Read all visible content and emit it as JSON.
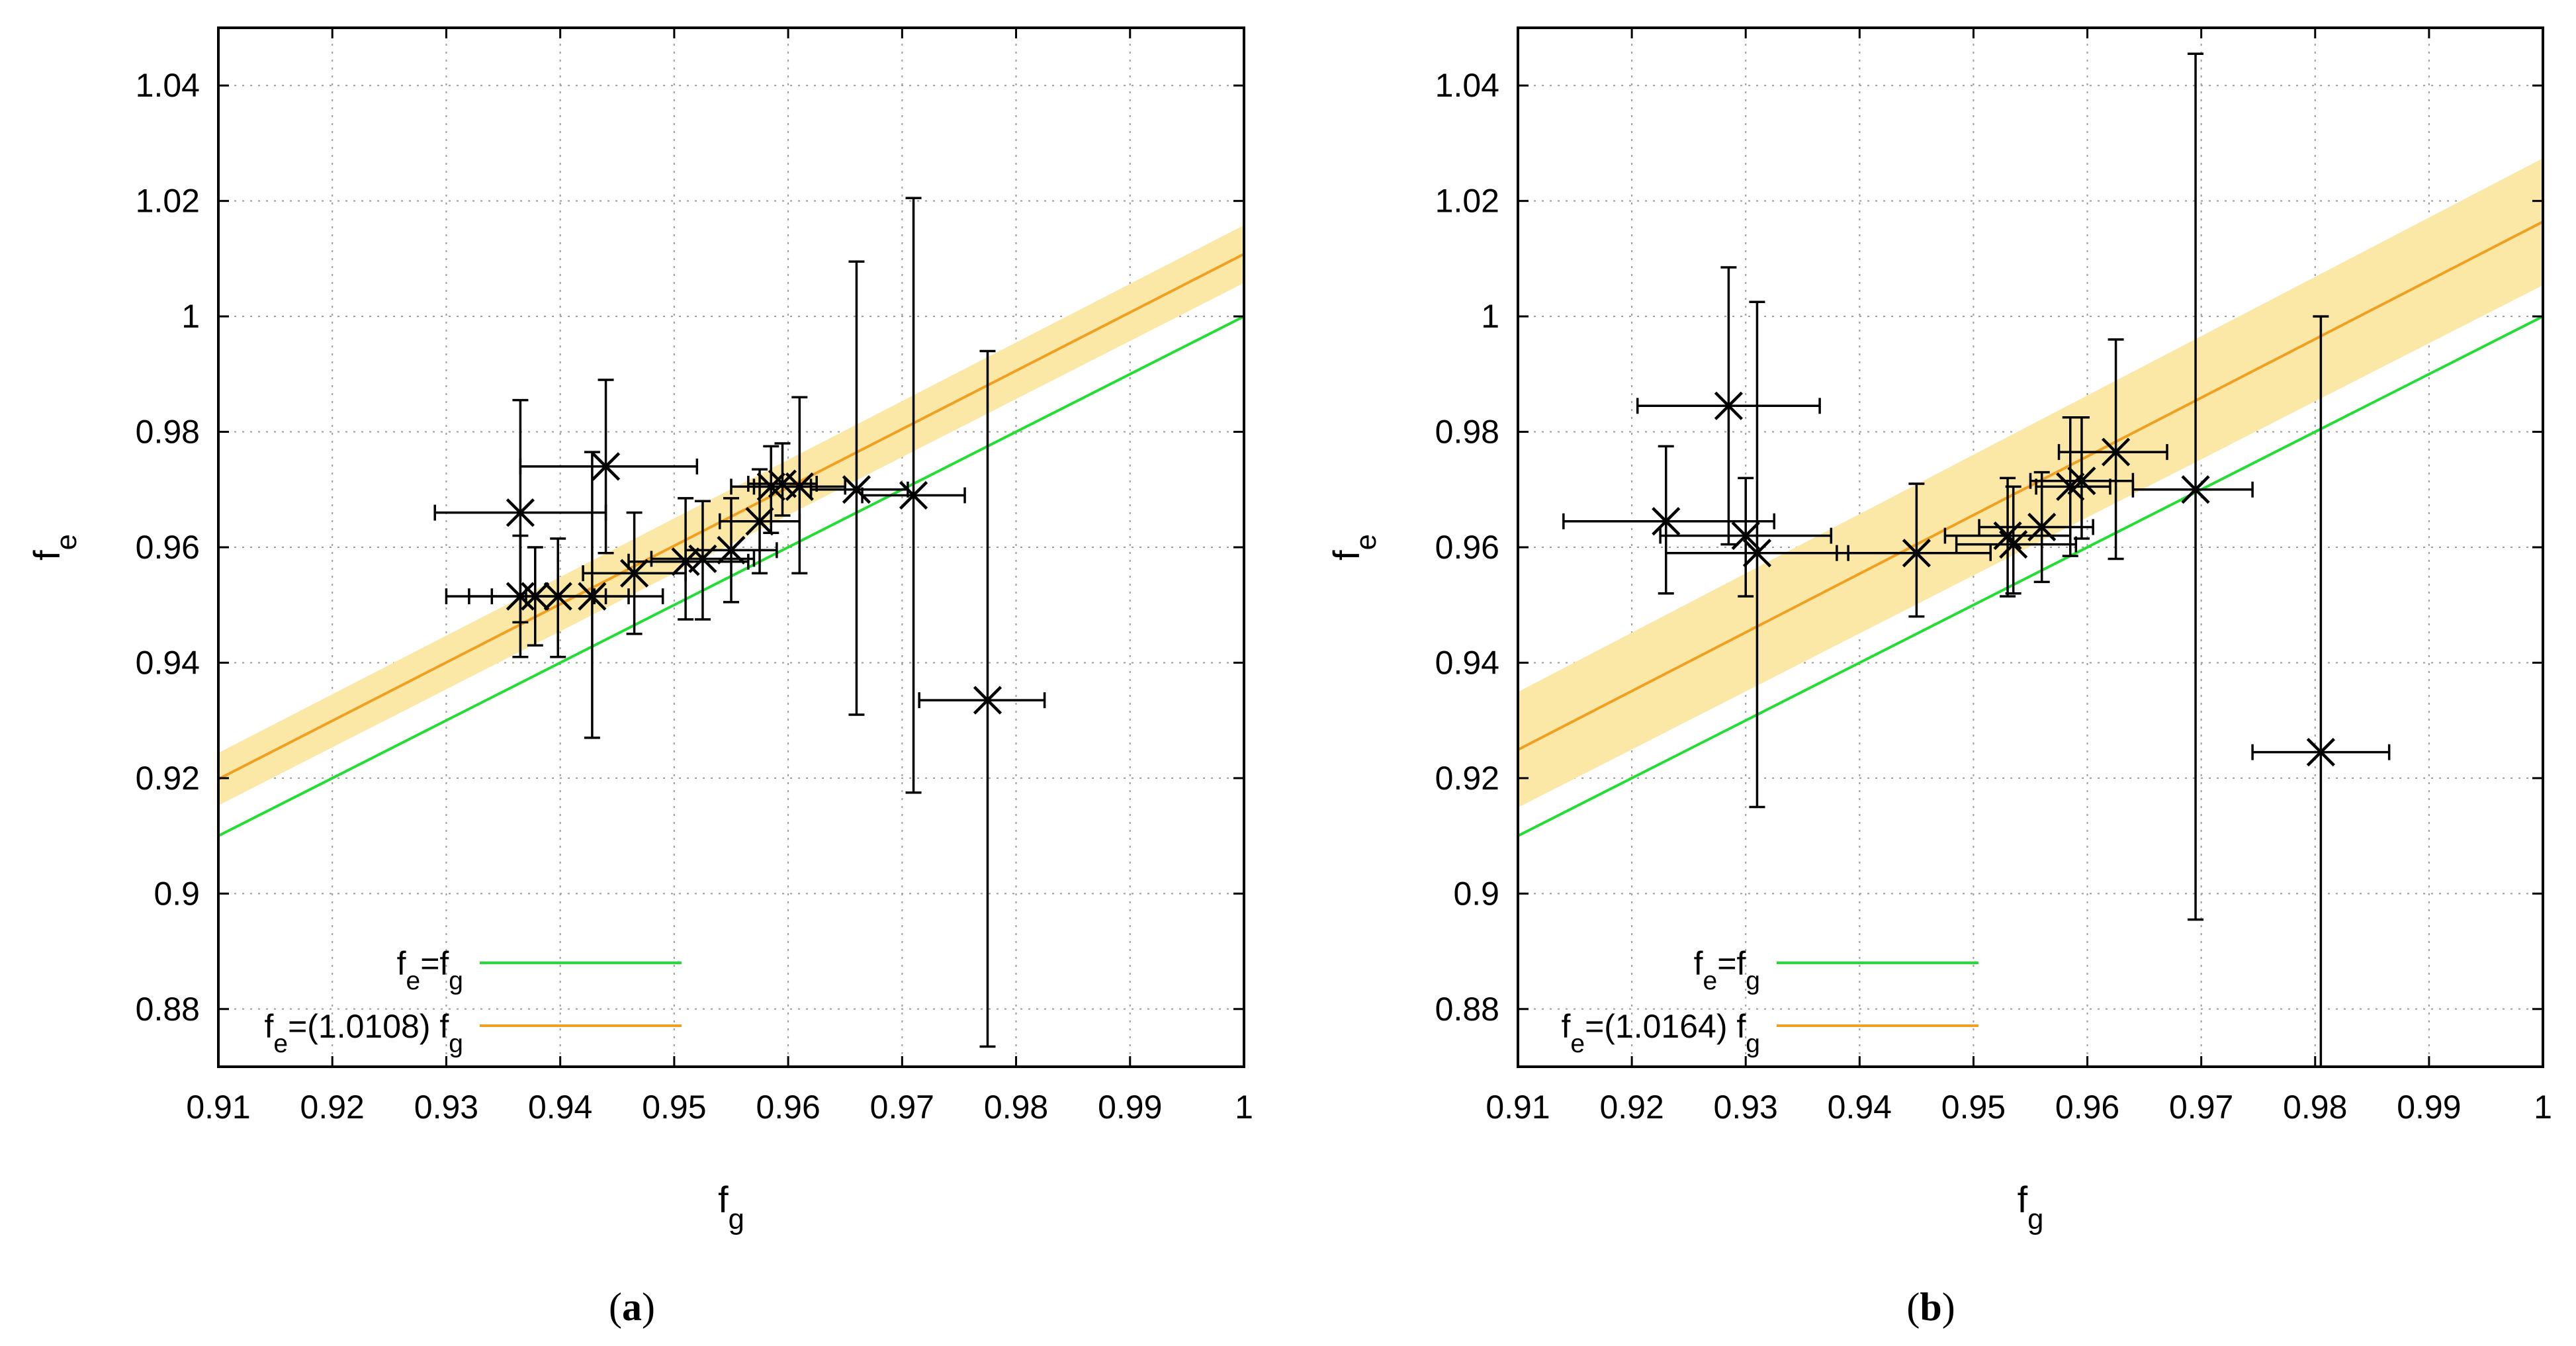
{
  "chart_data": [
    {
      "panel": "a",
      "type": "scatter",
      "caption": "(a)",
      "caption_letter": "a",
      "xlabel": "f_g",
      "ylabel": "f_e",
      "xlim": [
        0.91,
        1.0
      ],
      "ylim": [
        0.87,
        1.05
      ],
      "xticks": [
        0.91,
        0.92,
        0.93,
        0.94,
        0.95,
        0.96,
        0.97,
        0.98,
        0.99,
        1.0
      ],
      "xtick_labels": [
        "0.91",
        "0.92",
        "0.93",
        "0.94",
        "0.95",
        "0.96",
        "0.97",
        "0.98",
        "0.99",
        "1"
      ],
      "yticks": [
        0.88,
        0.9,
        0.92,
        0.94,
        0.96,
        0.98,
        1.0,
        1.02,
        1.04
      ],
      "ytick_labels": [
        "0.88",
        "0.9",
        "0.92",
        "0.94",
        "0.96",
        "0.98",
        "1",
        "1.02",
        "1.04"
      ],
      "grid": true,
      "legend_position": "bottom-left",
      "series": [
        {
          "name": "fe=fg",
          "legend_base": "f",
          "legend_sub1": "e",
          "legend_mid": "=f",
          "legend_sub2": "g",
          "kind": "line",
          "slope": 1.0,
          "color": "#22dd33"
        },
        {
          "name": "fe=(1.0108) fg",
          "legend_base": "f",
          "legend_sub1": "e",
          "legend_mid": "=(1.0108) f",
          "legend_sub2": "g",
          "kind": "line",
          "slope": 1.0108,
          "band": [
            1.0058,
            1.0158
          ],
          "color": "#f0a020",
          "band_color": "#fbe8a6"
        }
      ],
      "points": [
        {
          "x": 0.9365,
          "y": 0.966,
          "xerr": [
            0.929,
            0.944
          ],
          "yerr": [
            0.947,
            0.9855
          ]
        },
        {
          "x": 0.9365,
          "y": 0.9515,
          "xerr": [
            0.93,
            0.943
          ],
          "yerr": [
            0.941,
            0.962
          ]
        },
        {
          "x": 0.9378,
          "y": 0.9515,
          "xerr": [
            0.932,
            0.944
          ],
          "yerr": [
            0.943,
            0.96
          ]
        },
        {
          "x": 0.9398,
          "y": 0.9515,
          "xerr": [
            0.934,
            0.946
          ],
          "yerr": [
            0.941,
            0.9615
          ]
        },
        {
          "x": 0.9428,
          "y": 0.9515,
          "xerr": [
            0.937,
            0.949
          ],
          "yerr": [
            0.927,
            0.9765
          ]
        },
        {
          "x": 0.944,
          "y": 0.974,
          "xerr": [
            0.9365,
            0.952
          ],
          "yerr": [
            0.959,
            0.989
          ]
        },
        {
          "x": 0.9465,
          "y": 0.9555,
          "xerr": [
            0.942,
            0.951
          ],
          "yerr": [
            0.945,
            0.966
          ]
        },
        {
          "x": 0.951,
          "y": 0.9575,
          "xerr": [
            0.946,
            0.9565
          ],
          "yerr": [
            0.9475,
            0.9685
          ]
        },
        {
          "x": 0.9525,
          "y": 0.958,
          "xerr": [
            0.948,
            0.957
          ],
          "yerr": [
            0.9475,
            0.968
          ]
        },
        {
          "x": 0.955,
          "y": 0.9595,
          "xerr": [
            0.951,
            0.959
          ],
          "yerr": [
            0.9505,
            0.9685
          ]
        },
        {
          "x": 0.9575,
          "y": 0.9645,
          "xerr": [
            0.954,
            0.961
          ],
          "yerr": [
            0.9555,
            0.9735
          ]
        },
        {
          "x": 0.9585,
          "y": 0.9705,
          "xerr": [
            0.955,
            0.962
          ],
          "yerr": [
            0.9625,
            0.9775
          ]
        },
        {
          "x": 0.9595,
          "y": 0.971,
          "xerr": [
            0.9565,
            0.9625
          ],
          "yerr": [
            0.9655,
            0.978
          ]
        },
        {
          "x": 0.961,
          "y": 0.9705,
          "xerr": [
            0.957,
            0.965
          ],
          "yerr": [
            0.9555,
            0.986
          ]
        },
        {
          "x": 0.966,
          "y": 0.97,
          "xerr": [
            0.962,
            0.9705
          ],
          "yerr": [
            0.931,
            1.0095
          ]
        },
        {
          "x": 0.971,
          "y": 0.969,
          "xerr": [
            0.9665,
            0.9755
          ],
          "yerr": [
            0.9175,
            1.0205
          ]
        },
        {
          "x": 0.9775,
          "y": 0.9335,
          "xerr": [
            0.9715,
            0.9825
          ],
          "yerr": [
            0.8735,
            0.994
          ]
        }
      ]
    },
    {
      "panel": "b",
      "type": "scatter",
      "caption": "(b)",
      "caption_letter": "b",
      "xlabel": "f_g",
      "ylabel": "f_e",
      "xlim": [
        0.91,
        1.0
      ],
      "ylim": [
        0.87,
        1.05
      ],
      "xticks": [
        0.91,
        0.92,
        0.93,
        0.94,
        0.95,
        0.96,
        0.97,
        0.98,
        0.99,
        1.0
      ],
      "xtick_labels": [
        "0.91",
        "0.92",
        "0.93",
        "0.94",
        "0.95",
        "0.96",
        "0.97",
        "0.98",
        "0.99",
        "1"
      ],
      "yticks": [
        0.88,
        0.9,
        0.92,
        0.94,
        0.96,
        0.98,
        1.0,
        1.02,
        1.04
      ],
      "ytick_labels": [
        "0.88",
        "0.9",
        "0.92",
        "0.94",
        "0.96",
        "0.98",
        "1",
        "1.02",
        "1.04"
      ],
      "grid": true,
      "legend_position": "bottom-center",
      "series": [
        {
          "name": "fe=fg",
          "legend_base": "f",
          "legend_sub1": "e",
          "legend_mid": "=f",
          "legend_sub2": "g",
          "kind": "line",
          "slope": 1.0,
          "color": "#22dd33"
        },
        {
          "name": "fe=(1.0164) fg",
          "legend_base": "f",
          "legend_sub1": "e",
          "legend_mid": "=(1.0164) f",
          "legend_sub2": "g",
          "kind": "line",
          "slope": 1.0164,
          "band": [
            1.0054,
            1.0274
          ],
          "color": "#f0a020",
          "band_color": "#fbe8a6"
        }
      ],
      "points": [
        {
          "x": 0.923,
          "y": 0.9645,
          "xerr": [
            0.914,
            0.9325
          ],
          "yerr": [
            0.952,
            0.9775
          ]
        },
        {
          "x": 0.9285,
          "y": 0.9845,
          "xerr": [
            0.9205,
            0.9365
          ],
          "yerr": [
            0.9605,
            1.0085
          ]
        },
        {
          "x": 0.93,
          "y": 0.962,
          "xerr": [
            0.9225,
            0.9375
          ],
          "yerr": [
            0.9515,
            0.972
          ]
        },
        {
          "x": 0.931,
          "y": 0.959,
          "xerr": [
            0.923,
            0.939
          ],
          "yerr": [
            0.915,
            1.0025
          ]
        },
        {
          "x": 0.945,
          "y": 0.959,
          "xerr": [
            0.938,
            0.9515
          ],
          "yerr": [
            0.948,
            0.971
          ]
        },
        {
          "x": 0.953,
          "y": 0.962,
          "xerr": [
            0.9475,
            0.9585
          ],
          "yerr": [
            0.9515,
            0.972
          ]
        },
        {
          "x": 0.9535,
          "y": 0.9605,
          "xerr": [
            0.9485,
            0.959
          ],
          "yerr": [
            0.952,
            0.9705
          ]
        },
        {
          "x": 0.956,
          "y": 0.9635,
          "xerr": [
            0.9505,
            0.9605
          ],
          "yerr": [
            0.954,
            0.973
          ]
        },
        {
          "x": 0.9585,
          "y": 0.9705,
          "xerr": [
            0.9555,
            0.962
          ],
          "yerr": [
            0.9585,
            0.9825
          ]
        },
        {
          "x": 0.9595,
          "y": 0.9715,
          "xerr": [
            0.955,
            0.964
          ],
          "yerr": [
            0.9615,
            0.9825
          ]
        },
        {
          "x": 0.9625,
          "y": 0.9765,
          "xerr": [
            0.9575,
            0.967
          ],
          "yerr": [
            0.958,
            0.996
          ]
        },
        {
          "x": 0.9695,
          "y": 0.97,
          "xerr": [
            0.964,
            0.9745
          ],
          "yerr": [
            0.8955,
            1.0455
          ]
        },
        {
          "x": 0.9805,
          "y": 0.9245,
          "xerr": [
            0.9745,
            0.9865
          ],
          "yerr": [
            0.87,
            1.0
          ]
        }
      ]
    }
  ]
}
